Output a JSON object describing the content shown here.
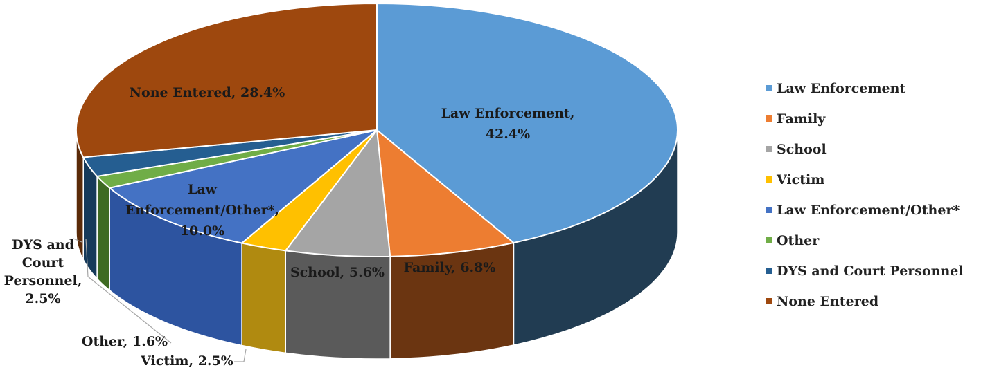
{
  "chart_data": {
    "type": "pie",
    "style": "3d-exploded-depth",
    "slices": [
      {
        "name": "Law Enforcement",
        "value": 42.4,
        "color": "#5b9bd5",
        "side_color": "#213c52",
        "label": [
          "Law Enforcement,",
          "42.4%"
        ]
      },
      {
        "name": "Family",
        "value": 6.8,
        "color": "#ed7d31",
        "side_color": "#6b3511",
        "label": [
          "Family, 6.8%"
        ]
      },
      {
        "name": "School",
        "value": 5.6,
        "color": "#a5a5a5",
        "side_color": "#5a5a5a",
        "label": [
          "School, 5.6%"
        ]
      },
      {
        "name": "Victim",
        "value": 2.5,
        "color": "#ffc000",
        "side_color": "#b08a10",
        "label": [
          "Victim, 2.5%"
        ]
      },
      {
        "name": "Law Enforcement/Other*",
        "value": 10.0,
        "color": "#4472c4",
        "side_color": "#2d54a0",
        "label": [
          "Law",
          "Enforcement/Other*,",
          "10.0%"
        ]
      },
      {
        "name": "Other",
        "value": 1.6,
        "color": "#70ad47",
        "side_color": "#3e6a22",
        "label": [
          "Other, 1.6%"
        ]
      },
      {
        "name": "DYS and Court Personnel",
        "value": 2.5,
        "color": "#255e91",
        "side_color": "#163a5a",
        "label": [
          "DYS and",
          "Court",
          "Personnel,",
          "2.5%"
        ]
      },
      {
        "name": "None Entered",
        "value": 28.4,
        "color": "#9e480e",
        "side_color": "#5a2a08",
        "label": [
          "None Entered, 28.4%"
        ]
      }
    ],
    "legend": {
      "position": "right"
    }
  }
}
